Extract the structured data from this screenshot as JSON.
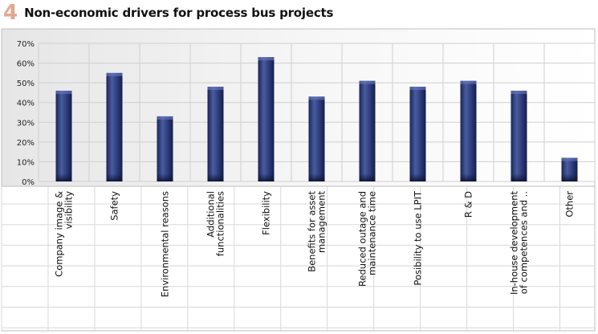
{
  "figure": {
    "number": "4",
    "title": "Non-economic drivers for process bus projects"
  },
  "chart_data": {
    "type": "bar",
    "categories": [
      [
        "Company image &",
        "visibility"
      ],
      [
        "Safety"
      ],
      [
        "Environmental reasons"
      ],
      [
        "Additional",
        "functionalities"
      ],
      [
        "Flexibility"
      ],
      [
        "Benefits for asset",
        "management"
      ],
      [
        "Reduced outage and",
        "maintenance time"
      ],
      [
        "Posibility to use LPIT"
      ],
      [
        "R & D"
      ],
      [
        "In-house development",
        "of competences and .."
      ],
      [
        "Other"
      ]
    ],
    "values": [
      46,
      55,
      33,
      48,
      63,
      43,
      51,
      48,
      51,
      46,
      12
    ],
    "ylim": [
      0,
      70
    ],
    "yticks": [
      "0%",
      "10%",
      "20%",
      "30%",
      "40%",
      "50%",
      "60%",
      "70%"
    ],
    "grid": true,
    "legend": "none",
    "colors": {
      "bar": "#2b3a78",
      "bar_highlight": "#5a6cb0",
      "bar_dark": "#101a40",
      "grid": "#cfcfcf",
      "panel": "#ededed"
    }
  }
}
